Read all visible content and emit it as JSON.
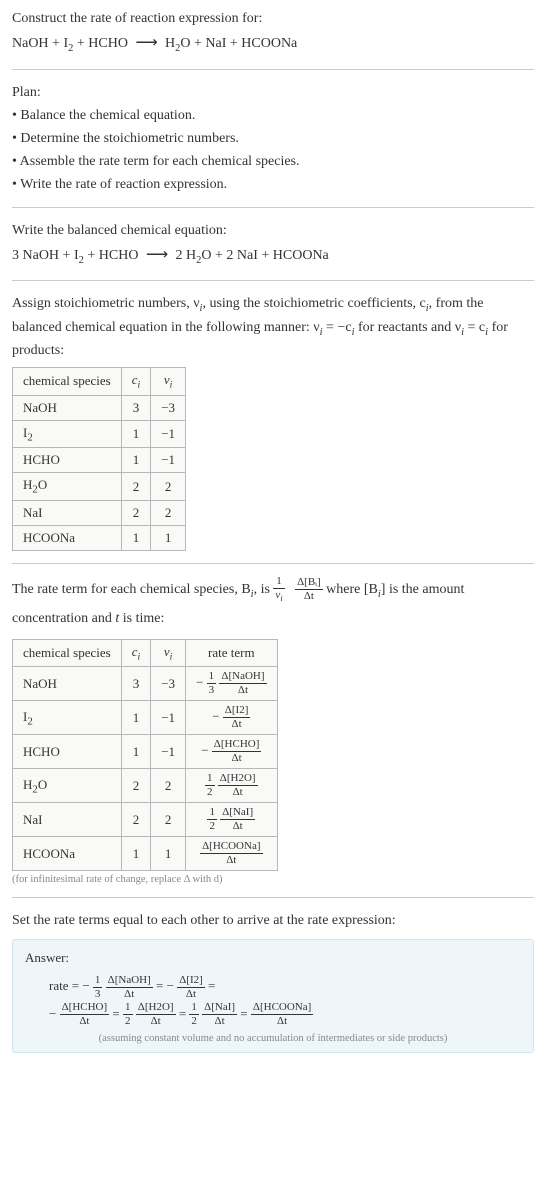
{
  "construct": {
    "title": "Construct the rate of reaction expression for:",
    "equation_lhs": "NaOH + I",
    "equation_i2_sub": "2",
    "equation_mid": " + HCHO ",
    "equation_arrow": "⟶",
    "equation_rhs": " H",
    "equation_h2o_sub": "2",
    "equation_rhs2": "O + NaI + HCOONa"
  },
  "plan": {
    "title": "Plan:",
    "items": [
      "• Balance the chemical equation.",
      "• Determine the stoichiometric numbers.",
      "• Assemble the rate term for each chemical species.",
      "• Write the rate of reaction expression."
    ]
  },
  "balanced": {
    "title": "Write the balanced chemical equation:",
    "lhs": "3 NaOH + I",
    "i2_sub": "2",
    "mid": " + HCHO ",
    "arrow": "⟶",
    "rhs1": " 2 H",
    "h2o_sub": "2",
    "rhs2": "O + 2 NaI + HCOONa"
  },
  "assign": {
    "title_part1": "Assign stoichiometric numbers, ν",
    "title_i_sub": "i",
    "title_part2": ", using the stoichiometric coefficients, c",
    "title_part3": ", from the balanced chemical equation in the following manner: ν",
    "title_part4": " = −c",
    "title_part5": " for reactants and ν",
    "title_part6": " = c",
    "title_part7": " for products:",
    "headers": [
      "chemical species",
      "cᵢ",
      "νᵢ"
    ],
    "rows": [
      {
        "species": "NaOH",
        "c": "3",
        "v": "−3"
      },
      {
        "species_html": "I<sub>2</sub>",
        "c": "1",
        "v": "−1"
      },
      {
        "species": "HCHO",
        "c": "1",
        "v": "−1"
      },
      {
        "species_html": "H<sub>2</sub>O",
        "c": "2",
        "v": "2"
      },
      {
        "species": "NaI",
        "c": "2",
        "v": "2"
      },
      {
        "species": "HCOONa",
        "c": "1",
        "v": "1"
      }
    ]
  },
  "rateterm": {
    "title_p1": "The rate term for each chemical species, B",
    "title_i": "i",
    "title_p2": ", is ",
    "frac1_num": "1",
    "frac1_den": "νᵢ",
    "frac2_num": "Δ[Bᵢ]",
    "frac2_den": "Δt",
    "title_p3": " where [B",
    "title_p4": "] is the amount concentration and ",
    "title_t": "t",
    "title_p5": " is time:",
    "headers": [
      "chemical species",
      "cᵢ",
      "νᵢ",
      "rate term"
    ],
    "rows": [
      {
        "species": "NaOH",
        "c": "3",
        "v": "−3",
        "sign": "−",
        "coef_num": "1",
        "coef_den": "3",
        "d_num": "Δ[NaOH]",
        "d_den": "Δt"
      },
      {
        "species_html": "I<sub>2</sub>",
        "c": "1",
        "v": "−1",
        "sign": "−",
        "coef_num": "",
        "coef_den": "",
        "d_num": "Δ[I2]",
        "d_den": "Δt"
      },
      {
        "species": "HCHO",
        "c": "1",
        "v": "−1",
        "sign": "−",
        "coef_num": "",
        "coef_den": "",
        "d_num": "Δ[HCHO]",
        "d_den": "Δt"
      },
      {
        "species_html": "H<sub>2</sub>O",
        "c": "2",
        "v": "2",
        "sign": "",
        "coef_num": "1",
        "coef_den": "2",
        "d_num": "Δ[H2O]",
        "d_den": "Δt"
      },
      {
        "species": "NaI",
        "c": "2",
        "v": "2",
        "sign": "",
        "coef_num": "1",
        "coef_den": "2",
        "d_num": "Δ[NaI]",
        "d_den": "Δt"
      },
      {
        "species": "HCOONa",
        "c": "1",
        "v": "1",
        "sign": "",
        "coef_num": "",
        "coef_den": "",
        "d_num": "Δ[HCOONa]",
        "d_den": "Δt"
      }
    ],
    "note": "(for infinitesimal rate of change, replace Δ with d)"
  },
  "final": {
    "title": "Set the rate terms equal to each other to arrive at the rate expression:",
    "answer_title": "Answer:",
    "rate_label": "rate = ",
    "terms": [
      {
        "sign": "−",
        "coef_num": "1",
        "coef_den": "3",
        "d_num": "Δ[NaOH]",
        "d_den": "Δt",
        "eq": " = "
      },
      {
        "sign": "−",
        "coef_num": "",
        "coef_den": "",
        "d_num": "Δ[I2]",
        "d_den": "Δt",
        "eq": " = "
      },
      {
        "sign": "−",
        "coef_num": "",
        "coef_den": "",
        "d_num": "Δ[HCHO]",
        "d_den": "Δt",
        "eq": " = "
      },
      {
        "sign": "",
        "coef_num": "1",
        "coef_den": "2",
        "d_num": "Δ[H2O]",
        "d_den": "Δt",
        "eq": " = "
      },
      {
        "sign": "",
        "coef_num": "1",
        "coef_den": "2",
        "d_num": "Δ[NaI]",
        "d_den": "Δt",
        "eq": " = "
      },
      {
        "sign": "",
        "coef_num": "",
        "coef_den": "",
        "d_num": "Δ[HCOONa]",
        "d_den": "Δt",
        "eq": ""
      }
    ],
    "note": "(assuming constant volume and no accumulation of intermediates or side products)"
  },
  "colors": {
    "text": "#333333",
    "rule": "#cccccc",
    "table_border": "#b8b8b8",
    "table_bg": "#f9f9f7",
    "note": "#888888",
    "answer_bg": "#eef6fa",
    "answer_border": "#cfe4ef"
  }
}
